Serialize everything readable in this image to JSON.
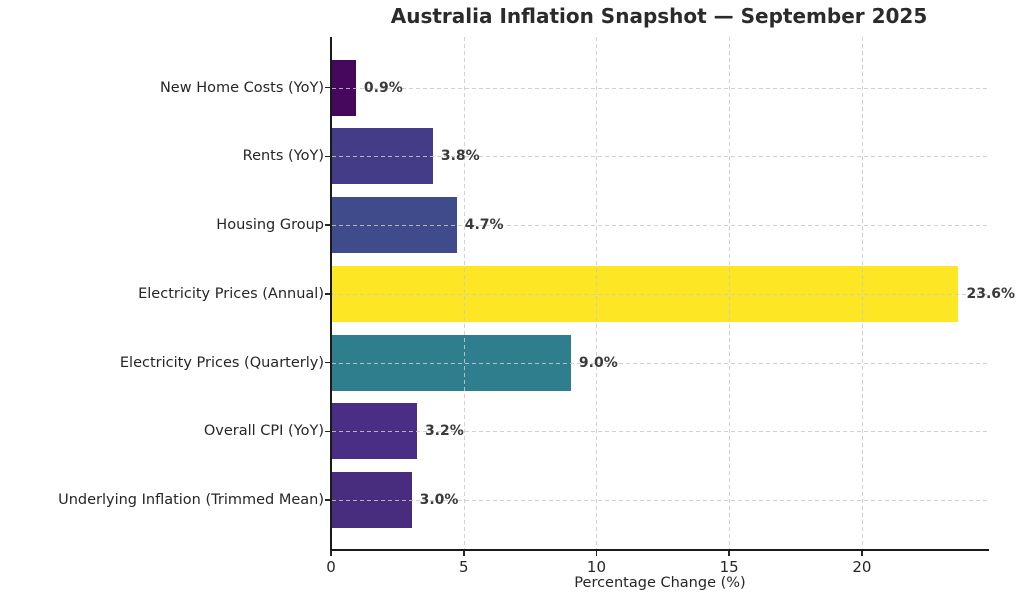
{
  "title": "Australia Inflation Snapshot — September 2025",
  "chart_data": {
    "type": "bar",
    "orientation": "horizontal",
    "title": "Australia Inflation Snapshot — September 2025",
    "categories": [
      "New Home Costs (YoY)",
      "Rents (YoY)",
      "Housing Group",
      "Electricity Prices (Annual)",
      "Electricity Prices (Quarterly)",
      "Overall CPI (YoY)",
      "Underlying Inflation (Trimmed Mean)"
    ],
    "values": [
      0.9,
      3.8,
      4.7,
      23.6,
      9.0,
      3.2,
      3.0
    ],
    "value_labels": [
      "0.9%",
      "3.8%",
      "4.7%",
      "23.6%",
      "9.0%",
      "3.2%",
      "3.0%"
    ],
    "bar_colors": [
      "#46085c",
      "#453c87",
      "#3f4b8b",
      "#fde725",
      "#2e7e8e",
      "#4a2d84",
      "#482c7e"
    ],
    "xlabel": "Percentage Change (%)",
    "ylabel": "",
    "x_ticks": [
      0,
      5,
      10,
      15,
      20
    ],
    "x_tick_labels": [
      "0",
      "5",
      "10",
      "15",
      "20"
    ],
    "xlim": [
      0,
      24.75
    ],
    "grid": "dashed",
    "grid_color": "#c9c9c9",
    "legend": "none",
    "background_color": "#ffffff",
    "spine_color": "#1a1a1a"
  }
}
